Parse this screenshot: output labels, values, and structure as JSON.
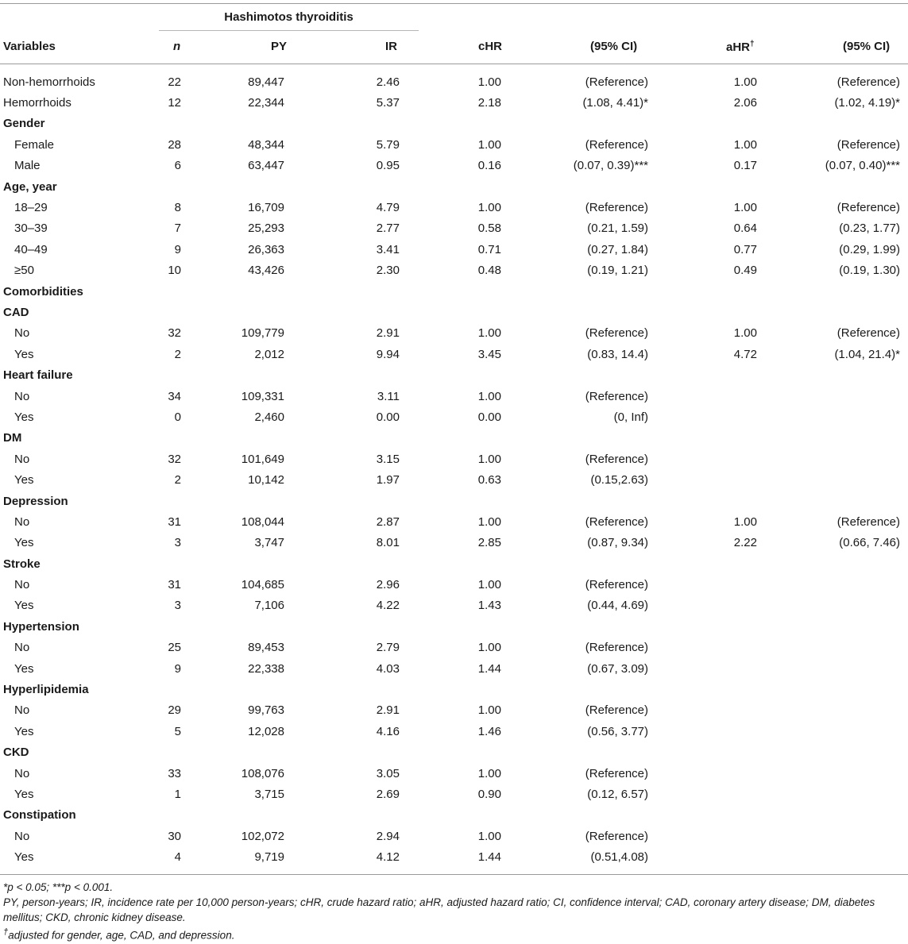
{
  "table": {
    "group_title": "Hashimotos thyroiditis",
    "headers": {
      "variables": "Variables",
      "n": "n",
      "py": "PY",
      "ir": "IR",
      "chr": "cHR",
      "ci1": "(95% CI)",
      "ahr": "aHR",
      "ahr_mark": "†",
      "ci2": "(95% CI)"
    },
    "rows": [
      {
        "label": "Non-hemorrhoids",
        "n": "22",
        "py": "89,447",
        "ir": "2.46",
        "chr": "1.00",
        "ci1": "(Reference)",
        "ahr": "1.00",
        "ci2": "(Reference)"
      },
      {
        "label": "Hemorrhoids",
        "n": "12",
        "py": "22,344",
        "ir": "5.37",
        "chr": "2.18",
        "ci1": "(1.08, 4.41)*",
        "ahr": "2.06",
        "ci2": "(1.02, 4.19)*"
      },
      {
        "label": "Gender",
        "section": true
      },
      {
        "label": "Female",
        "sub": true,
        "n": "28",
        "py": "48,344",
        "ir": "5.79",
        "chr": "1.00",
        "ci1": "(Reference)",
        "ahr": "1.00",
        "ci2": "(Reference)"
      },
      {
        "label": "Male",
        "sub": true,
        "n": "6",
        "py": "63,447",
        "ir": "0.95",
        "chr": "0.16",
        "ci1": "(0.07, 0.39)***",
        "ahr": "0.17",
        "ci2": "(0.07, 0.40)***"
      },
      {
        "label": "Age, year",
        "section": true
      },
      {
        "label": "18–29",
        "sub": true,
        "n": "8",
        "py": "16,709",
        "ir": "4.79",
        "chr": "1.00",
        "ci1": "(Reference)",
        "ahr": "1.00",
        "ci2": "(Reference)"
      },
      {
        "label": "30–39",
        "sub": true,
        "n": "7",
        "py": "25,293",
        "ir": "2.77",
        "chr": "0.58",
        "ci1": "(0.21, 1.59)",
        "ahr": "0.64",
        "ci2": "(0.23, 1.77)"
      },
      {
        "label": "40–49",
        "sub": true,
        "n": "9",
        "py": "26,363",
        "ir": "3.41",
        "chr": "0.71",
        "ci1": "(0.27, 1.84)",
        "ahr": "0.77",
        "ci2": "(0.29, 1.99)"
      },
      {
        "label": "≥50",
        "sub": true,
        "n": "10",
        "py": "43,426",
        "ir": "2.30",
        "chr": "0.48",
        "ci1": "(0.19, 1.21)",
        "ahr": "0.49",
        "ci2": "(0.19, 1.30)"
      },
      {
        "label": "Comorbidities",
        "section": true
      },
      {
        "label": "CAD",
        "section": true
      },
      {
        "label": "No",
        "sub": true,
        "n": "32",
        "py": "109,779",
        "ir": "2.91",
        "chr": "1.00",
        "ci1": "(Reference)",
        "ahr": "1.00",
        "ci2": "(Reference)"
      },
      {
        "label": "Yes",
        "sub": true,
        "n": "2",
        "py": "2,012",
        "ir": "9.94",
        "chr": "3.45",
        "ci1": "(0.83, 14.4)",
        "ahr": "4.72",
        "ci2": "(1.04, 21.4)*"
      },
      {
        "label": "Heart failure",
        "section": true
      },
      {
        "label": "No",
        "sub": true,
        "n": "34",
        "py": "109,331",
        "ir": "3.11",
        "chr": "1.00",
        "ci1": "(Reference)",
        "ahr": "",
        "ci2": ""
      },
      {
        "label": "Yes",
        "sub": true,
        "n": "0",
        "py": "2,460",
        "ir": "0.00",
        "chr": "0.00",
        "ci1": "(0, Inf)",
        "ahr": "",
        "ci2": ""
      },
      {
        "label": "DM",
        "section": true
      },
      {
        "label": "No",
        "sub": true,
        "n": "32",
        "py": "101,649",
        "ir": "3.15",
        "chr": "1.00",
        "ci1": "(Reference)",
        "ahr": "",
        "ci2": ""
      },
      {
        "label": "Yes",
        "sub": true,
        "n": "2",
        "py": "10,142",
        "ir": "1.97",
        "chr": "0.63",
        "ci1": "(0.15,2.63)",
        "ahr": "",
        "ci2": ""
      },
      {
        "label": "Depression",
        "section": true
      },
      {
        "label": "No",
        "sub": true,
        "n": "31",
        "py": "108,044",
        "ir": "2.87",
        "chr": "1.00",
        "ci1": "(Reference)",
        "ahr": "1.00",
        "ci2": "(Reference)"
      },
      {
        "label": "Yes",
        "sub": true,
        "n": "3",
        "py": "3,747",
        "ir": "8.01",
        "chr": "2.85",
        "ci1": "(0.87, 9.34)",
        "ahr": "2.22",
        "ci2": "(0.66, 7.46)"
      },
      {
        "label": "Stroke",
        "section": true
      },
      {
        "label": "No",
        "sub": true,
        "n": "31",
        "py": "104,685",
        "ir": "2.96",
        "chr": "1.00",
        "ci1": "(Reference)",
        "ahr": "",
        "ci2": ""
      },
      {
        "label": "Yes",
        "sub": true,
        "n": "3",
        "py": "7,106",
        "ir": "4.22",
        "chr": "1.43",
        "ci1": "(0.44, 4.69)",
        "ahr": "",
        "ci2": ""
      },
      {
        "label": "Hypertension",
        "section": true
      },
      {
        "label": "No",
        "sub": true,
        "n": "25",
        "py": "89,453",
        "ir": "2.79",
        "chr": "1.00",
        "ci1": "(Reference)",
        "ahr": "",
        "ci2": ""
      },
      {
        "label": "Yes",
        "sub": true,
        "n": "9",
        "py": "22,338",
        "ir": "4.03",
        "chr": "1.44",
        "ci1": "(0.67, 3.09)",
        "ahr": "",
        "ci2": ""
      },
      {
        "label": "Hyperlipidemia",
        "section": true
      },
      {
        "label": "No",
        "sub": true,
        "n": "29",
        "py": "99,763",
        "ir": "2.91",
        "chr": "1.00",
        "ci1": "(Reference)",
        "ahr": "",
        "ci2": ""
      },
      {
        "label": "Yes",
        "sub": true,
        "n": "5",
        "py": "12,028",
        "ir": "4.16",
        "chr": "1.46",
        "ci1": "(0.56, 3.77)",
        "ahr": "",
        "ci2": ""
      },
      {
        "label": "CKD",
        "section": true
      },
      {
        "label": "No",
        "sub": true,
        "n": "33",
        "py": "108,076",
        "ir": "3.05",
        "chr": "1.00",
        "ci1": "(Reference)",
        "ahr": "",
        "ci2": ""
      },
      {
        "label": "Yes",
        "sub": true,
        "n": "1",
        "py": "3,715",
        "ir": "2.69",
        "chr": "0.90",
        "ci1": "(0.12, 6.57)",
        "ahr": "",
        "ci2": ""
      },
      {
        "label": "Constipation",
        "section": true
      },
      {
        "label": "No",
        "sub": true,
        "n": "30",
        "py": "102,072",
        "ir": "2.94",
        "chr": "1.00",
        "ci1": "(Reference)",
        "ahr": "",
        "ci2": ""
      },
      {
        "label": "Yes",
        "sub": true,
        "n": "4",
        "py": "9,719",
        "ir": "4.12",
        "chr": "1.44",
        "ci1": "(0.51,4.08)",
        "ahr": "",
        "ci2": ""
      }
    ]
  },
  "footnotes": {
    "significance": "*p < 0.05; ***p < 0.001.",
    "abbreviations": "PY, person-years; IR, incidence rate per 10,000 person-years; cHR, crude hazard ratio; aHR, adjusted hazard ratio; CI, confidence interval; CAD, coronary artery disease; DM, diabetes mellitus; CKD, chronic kidney disease.",
    "adjusted_mark": "†",
    "adjusted": "adjusted for gender, age, CAD, and depression."
  }
}
